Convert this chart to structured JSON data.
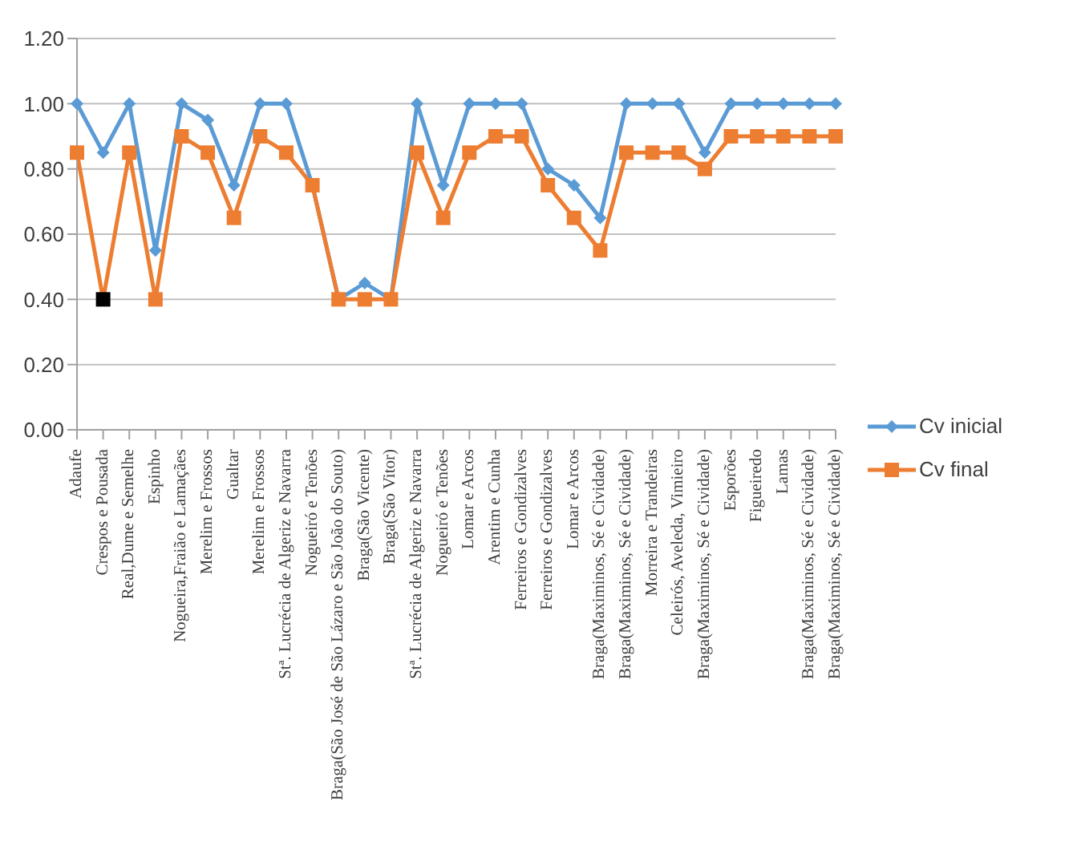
{
  "chart_data": {
    "type": "line",
    "categories": [
      "Adaufe",
      "Crespos e Pousada",
      "Real,Dume e Semelhe",
      "Espinho",
      "Nogueira,Fraião e Lamaçães",
      "Merelim e Frossos",
      "Gualtar",
      "Merelim e Frossos",
      "Stª. Lucrécia de Algeriz e Navarra",
      "Nogueiró e Tenões",
      "Braga(São José de São Lázaro e São João do Souto)",
      "Braga(São Vicente)",
      "Braga(São Vitor)",
      "Stª. Lucrécia de Algeriz e Navarra",
      "Nogueiró e Tenões",
      "Lomar e Arcos",
      "Arentim e Cunha",
      "Ferreiros e Gondizalves",
      "Ferreiros e Gondizalves",
      "Lomar e Arcos",
      "Braga(Maximinos, Sé e Cividade)",
      "Braga(Maximinos, Sé e Cividade)",
      "Morreira e Trandeiras",
      "Celeirós, Aveleda, Vimieiro",
      "Braga(Maximinos, Sé e Cividade)",
      "Esporões",
      "Figueiredo",
      "Lamas",
      "Braga(Maximinos, Sé e Cividade)",
      "Braga(Maximinos, Sé e Cividade)"
    ],
    "series": [
      {
        "name": "Cv inicial",
        "color": "#5b9bd5",
        "marker": "diamond",
        "values": [
          1,
          0.85,
          1,
          0.55,
          1,
          0.95,
          0.75,
          1,
          1,
          0.75,
          0.4,
          0.45,
          0.4,
          1,
          0.75,
          1,
          1,
          1,
          0.8,
          0.75,
          0.65,
          1,
          1,
          1,
          0.85,
          1,
          1,
          1,
          1,
          1
        ]
      },
      {
        "name": "Cv final",
        "color": "#ed7d31",
        "marker": "square",
        "colors": [
          "#ed7d31",
          "#000000",
          "#ed7d31",
          "#ed7d31",
          "#ed7d31",
          "#ed7d31",
          "#ed7d31",
          "#ed7d31",
          "#ed7d31",
          "#ed7d31",
          "#ed7d31",
          "#ed7d31",
          "#ed7d31",
          "#ed7d31",
          "#ed7d31",
          "#ed7d31",
          "#ed7d31",
          "#ed7d31",
          "#ed7d31",
          "#ed7d31",
          "#ed7d31",
          "#ed7d31",
          "#ed7d31",
          "#ed7d31",
          "#ed7d31",
          "#ed7d31",
          "#ed7d31",
          "#ed7d31",
          "#ed7d31",
          "#ed7d31"
        ],
        "values": [
          0.85,
          0.4,
          0.85,
          0.4,
          0.9,
          0.85,
          0.65,
          0.9,
          0.85,
          0.75,
          0.4,
          0.4,
          0.4,
          0.85,
          0.65,
          0.85,
          0.9,
          0.9,
          0.75,
          0.65,
          0.55,
          0.85,
          0.85,
          0.85,
          0.8,
          0.9,
          0.9,
          0.9,
          0.9,
          0.9
        ]
      }
    ],
    "ylim": [
      0,
      1.2
    ],
    "yticks": [
      {
        "value": 0,
        "label": "0.00"
      },
      {
        "value": 0.2,
        "label": "0.20"
      },
      {
        "value": 0.4,
        "label": "0.40"
      },
      {
        "value": 0.6,
        "label": "0.60"
      },
      {
        "value": 0.8,
        "label": "0.80"
      },
      {
        "value": 1,
        "label": "1.00"
      },
      {
        "value": 1.2,
        "label": "1.20"
      }
    ],
    "grid": "y",
    "legend": "right"
  }
}
